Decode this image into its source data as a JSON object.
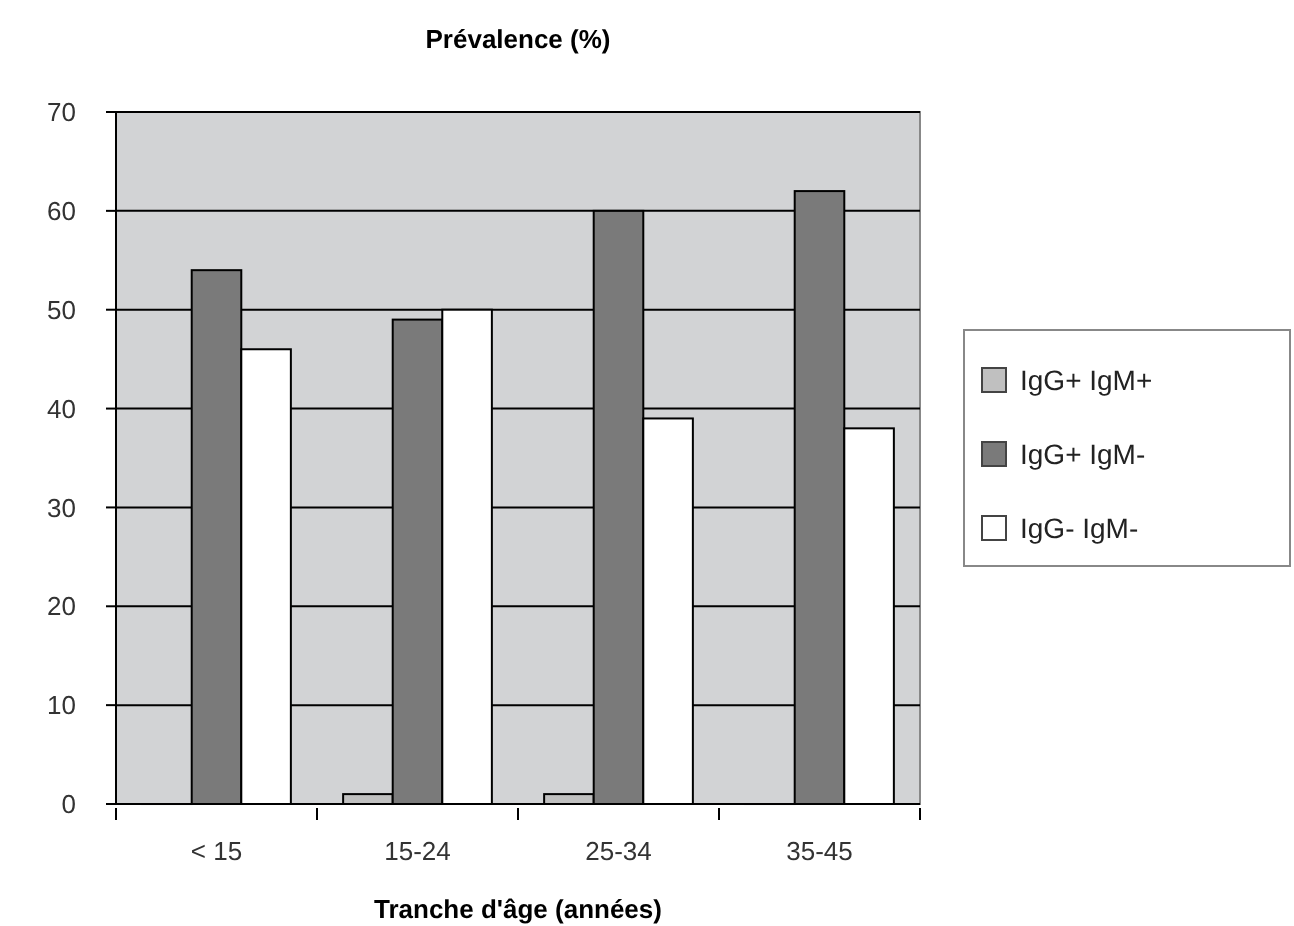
{
  "chart_data": {
    "type": "bar",
    "title": "Prévalence (%)",
    "xlabel": "Tranche d'âge (années)",
    "categories": [
      "< 15",
      "15-24",
      "25-34",
      "35-45"
    ],
    "series": [
      {
        "name": "IgG+ IgM+",
        "color": "#c0c0c0",
        "values": [
          0,
          1,
          1,
          0
        ]
      },
      {
        "name": "IgG+ IgM-",
        "color": "#7a7a7a",
        "values": [
          54,
          49,
          60,
          62
        ]
      },
      {
        "name": "IgG- IgM-",
        "color": "#ffffff",
        "values": [
          46,
          50,
          39,
          38
        ]
      }
    ],
    "ylim": [
      0,
      70
    ],
    "yticks": [
      0,
      10,
      20,
      30,
      40,
      50,
      60,
      70
    ],
    "grid": "y",
    "legend": "right"
  }
}
